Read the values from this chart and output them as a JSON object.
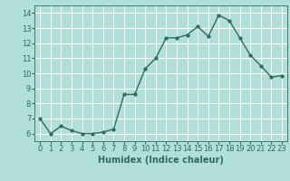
{
  "x": [
    0,
    1,
    2,
    3,
    4,
    5,
    6,
    7,
    8,
    9,
    10,
    11,
    12,
    13,
    14,
    15,
    16,
    17,
    18,
    19,
    20,
    21,
    22,
    23
  ],
  "y": [
    7.0,
    6.0,
    6.5,
    6.2,
    6.0,
    6.0,
    6.1,
    6.3,
    8.6,
    8.6,
    10.3,
    11.0,
    12.35,
    12.35,
    12.55,
    13.1,
    12.45,
    13.85,
    13.5,
    12.35,
    11.2,
    10.5,
    9.75,
    9.85
  ],
  "xlabel": "Humidex (Indice chaleur)",
  "ylim": [
    5.5,
    14.5
  ],
  "xlim": [
    -0.5,
    23.5
  ],
  "yticks": [
    6,
    7,
    8,
    9,
    10,
    11,
    12,
    13,
    14
  ],
  "xticks": [
    0,
    1,
    2,
    3,
    4,
    5,
    6,
    7,
    8,
    9,
    10,
    11,
    12,
    13,
    14,
    15,
    16,
    17,
    18,
    19,
    20,
    21,
    22,
    23
  ],
  "line_color": "#2e6b5e",
  "marker_color": "#2e6b5e",
  "bg_color": "#b2e0d8",
  "grid_color": "#ffffff",
  "tick_label_color": "#2e6b5e",
  "xlabel_color": "#2e6b5e",
  "xlabel_fontsize": 7,
  "tick_fontsize": 6,
  "line_width": 1.0,
  "marker_size": 2.5
}
